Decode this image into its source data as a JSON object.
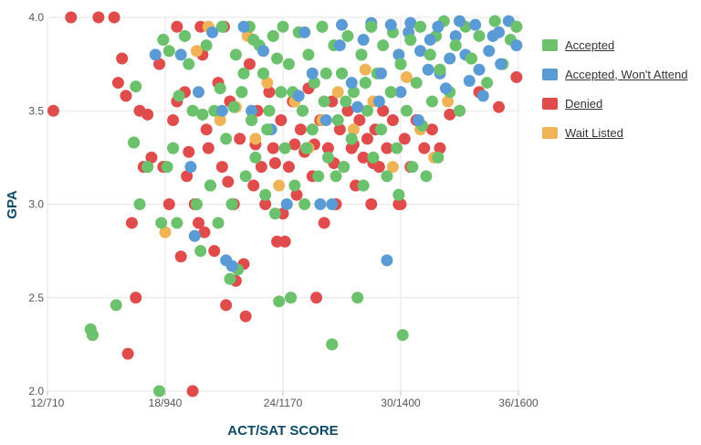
{
  "chart_data": {
    "type": "scatter",
    "xlabel": "ACT/SAT SCORE",
    "ylabel": "GPA",
    "xlim": [
      12,
      36
    ],
    "ylim": [
      2.0,
      4.0
    ],
    "x_ticks": [
      {
        "value": 12,
        "label": "12/710"
      },
      {
        "value": 18,
        "label": "18/940"
      },
      {
        "value": 24,
        "label": "24/1170"
      },
      {
        "value": 30,
        "label": "30/1400"
      },
      {
        "value": 36,
        "label": "36/1600"
      }
    ],
    "y_ticks": [
      {
        "value": 2.0,
        "label": "2.0"
      },
      {
        "value": 2.5,
        "label": "2.5"
      },
      {
        "value": 3.0,
        "label": "3.0"
      },
      {
        "value": 3.5,
        "label": "3.5"
      },
      {
        "value": 4.0,
        "label": "4.0"
      }
    ],
    "grid": true,
    "legend_position": "right",
    "series": [
      {
        "name": "Accepted",
        "color": "#6cc16c",
        "points": [
          [
            14.2,
            2.33
          ],
          [
            14.3,
            2.3
          ],
          [
            15.5,
            2.46
          ],
          [
            16.4,
            3.33
          ],
          [
            16.5,
            3.63
          ],
          [
            16.7,
            3.0
          ],
          [
            17.1,
            3.2
          ],
          [
            17.7,
            2.0
          ],
          [
            17.8,
            2.9
          ],
          [
            17.9,
            3.88
          ],
          [
            18.1,
            3.2
          ],
          [
            18.2,
            3.82
          ],
          [
            18.4,
            3.3
          ],
          [
            18.6,
            2.9
          ],
          [
            18.7,
            3.58
          ],
          [
            19.0,
            3.9
          ],
          [
            19.2,
            3.75
          ],
          [
            19.4,
            3.5
          ],
          [
            19.6,
            3.0
          ],
          [
            19.8,
            2.75
          ],
          [
            20.1,
            3.85
          ],
          [
            20.3,
            3.1
          ],
          [
            20.5,
            3.5
          ],
          [
            20.7,
            2.9
          ],
          [
            20.9,
            3.95
          ],
          [
            21.1,
            3.35
          ],
          [
            21.3,
            2.6
          ],
          [
            21.4,
            3.0
          ],
          [
            21.6,
            3.8
          ],
          [
            21.7,
            2.65
          ],
          [
            21.9,
            3.6
          ],
          [
            22.1,
            3.15
          ],
          [
            22.3,
            3.95
          ],
          [
            22.4,
            3.45
          ],
          [
            22.6,
            3.25
          ],
          [
            22.8,
            3.85
          ],
          [
            23.0,
            3.7
          ],
          [
            23.1,
            3.05
          ],
          [
            23.3,
            3.5
          ],
          [
            23.5,
            3.9
          ],
          [
            23.6,
            2.95
          ],
          [
            23.8,
            2.48
          ],
          [
            23.9,
            3.6
          ],
          [
            24.1,
            3.3
          ],
          [
            24.3,
            3.75
          ],
          [
            24.4,
            2.5
          ],
          [
            24.6,
            3.1
          ],
          [
            24.8,
            3.92
          ],
          [
            25.0,
            3.5
          ],
          [
            25.1,
            3.0
          ],
          [
            25.3,
            3.8
          ],
          [
            25.5,
            3.4
          ],
          [
            25.6,
            3.65
          ],
          [
            25.8,
            3.15
          ],
          [
            26.0,
            3.95
          ],
          [
            26.1,
            3.55
          ],
          [
            26.3,
            3.25
          ],
          [
            26.5,
            2.25
          ],
          [
            26.6,
            3.85
          ],
          [
            26.8,
            3.45
          ],
          [
            27.0,
            3.7
          ],
          [
            27.1,
            3.2
          ],
          [
            27.3,
            3.9
          ],
          [
            27.5,
            3.35
          ],
          [
            27.6,
            3.6
          ],
          [
            27.8,
            2.5
          ],
          [
            28.0,
            3.8
          ],
          [
            28.1,
            3.1
          ],
          [
            28.3,
            3.5
          ],
          [
            28.5,
            3.95
          ],
          [
            28.6,
            3.25
          ],
          [
            28.8,
            3.7
          ],
          [
            29.0,
            3.4
          ],
          [
            29.1,
            3.85
          ],
          [
            29.3,
            3.15
          ],
          [
            29.5,
            3.6
          ],
          [
            29.6,
            3.92
          ],
          [
            29.8,
            3.3
          ],
          [
            30.0,
            3.75
          ],
          [
            30.1,
            2.3
          ],
          [
            30.3,
            3.5
          ],
          [
            30.5,
            3.88
          ],
          [
            30.6,
            3.2
          ],
          [
            30.8,
            3.65
          ],
          [
            31.0,
            3.95
          ],
          [
            31.1,
            3.42
          ],
          [
            31.3,
            3.15
          ],
          [
            31.5,
            3.8
          ],
          [
            31.6,
            3.55
          ],
          [
            31.8,
            3.9
          ],
          [
            32.0,
            3.72
          ],
          [
            32.2,
            3.98
          ],
          [
            32.5,
            3.6
          ],
          [
            32.8,
            3.85
          ],
          [
            33.0,
            3.5
          ],
          [
            33.3,
            3.95
          ],
          [
            33.6,
            3.78
          ],
          [
            34.0,
            3.9
          ],
          [
            34.4,
            3.65
          ],
          [
            34.8,
            3.98
          ],
          [
            35.2,
            3.75
          ],
          [
            35.6,
            3.88
          ],
          [
            35.9,
            3.95
          ],
          [
            22.0,
            3.7
          ],
          [
            22.5,
            3.88
          ],
          [
            23.2,
            3.4
          ],
          [
            24.0,
            3.95
          ],
          [
            24.5,
            3.6
          ],
          [
            25.2,
            3.3
          ],
          [
            26.2,
            3.7
          ],
          [
            27.2,
            3.55
          ],
          [
            28.2,
            3.65
          ],
          [
            21.5,
            3.52
          ],
          [
            20.8,
            3.62
          ],
          [
            19.9,
            3.48
          ],
          [
            23.7,
            3.78
          ],
          [
            26.7,
            3.15
          ],
          [
            29.9,
            3.05
          ],
          [
            31.9,
            3.25
          ]
        ]
      },
      {
        "name": "Accepted, Won't Attend",
        "color": "#5b9bd5",
        "points": [
          [
            17.5,
            3.8
          ],
          [
            18.8,
            3.8
          ],
          [
            19.3,
            3.2
          ],
          [
            19.5,
            2.83
          ],
          [
            19.7,
            3.6
          ],
          [
            20.4,
            3.92
          ],
          [
            20.9,
            3.5
          ],
          [
            21.1,
            2.7
          ],
          [
            21.4,
            2.67
          ],
          [
            22.0,
            3.95
          ],
          [
            22.4,
            3.5
          ],
          [
            23.0,
            3.82
          ],
          [
            23.4,
            3.4
          ],
          [
            24.2,
            3.0
          ],
          [
            25.1,
            3.92
          ],
          [
            25.5,
            3.7
          ],
          [
            25.9,
            3.0
          ],
          [
            26.5,
            3.0
          ],
          [
            26.9,
            3.85
          ],
          [
            27.5,
            3.65
          ],
          [
            28.1,
            3.88
          ],
          [
            28.9,
            3.55
          ],
          [
            29.3,
            2.7
          ],
          [
            29.9,
            3.8
          ],
          [
            30.4,
            3.92
          ],
          [
            30.9,
            3.45
          ],
          [
            31.4,
            3.72
          ],
          [
            31.9,
            3.95
          ],
          [
            32.3,
            3.62
          ],
          [
            32.8,
            3.9
          ],
          [
            33.3,
            3.8
          ],
          [
            33.8,
            3.96
          ],
          [
            34.2,
            3.58
          ],
          [
            34.7,
            3.9
          ],
          [
            35.1,
            3.75
          ],
          [
            35.5,
            3.98
          ],
          [
            35.9,
            3.85
          ],
          [
            27.0,
            3.96
          ],
          [
            28.5,
            3.97
          ],
          [
            29.5,
            3.96
          ],
          [
            30.5,
            3.97
          ],
          [
            31.5,
            3.88
          ],
          [
            32.5,
            3.78
          ],
          [
            33.5,
            3.66
          ],
          [
            34.5,
            3.82
          ],
          [
            24.8,
            3.58
          ],
          [
            26.2,
            3.45
          ],
          [
            27.8,
            3.52
          ],
          [
            29.0,
            3.7
          ],
          [
            30.0,
            3.6
          ],
          [
            31.0,
            3.82
          ],
          [
            32.0,
            3.7
          ],
          [
            33.0,
            3.98
          ],
          [
            34.0,
            3.72
          ],
          [
            35.0,
            3.92
          ]
        ]
      },
      {
        "name": "Denied",
        "color": "#e04b4b",
        "points": [
          [
            12.3,
            3.5
          ],
          [
            13.2,
            4.0
          ],
          [
            14.3,
            2.3
          ],
          [
            14.6,
            4.0
          ],
          [
            15.6,
            3.65
          ],
          [
            15.8,
            3.78
          ],
          [
            16.1,
            2.2
          ],
          [
            16.3,
            2.9
          ],
          [
            16.5,
            2.5
          ],
          [
            16.7,
            3.5
          ],
          [
            16.9,
            3.2
          ],
          [
            17.1,
            3.48
          ],
          [
            17.3,
            3.25
          ],
          [
            17.7,
            3.75
          ],
          [
            18.0,
            3.2
          ],
          [
            18.2,
            3.0
          ],
          [
            18.4,
            3.45
          ],
          [
            18.6,
            3.55
          ],
          [
            18.8,
            2.72
          ],
          [
            19.0,
            3.6
          ],
          [
            19.2,
            3.28
          ],
          [
            19.4,
            2.0
          ],
          [
            19.5,
            3.0
          ],
          [
            19.7,
            2.9
          ],
          [
            19.9,
            3.8
          ],
          [
            20.1,
            3.4
          ],
          [
            20.3,
            3.1
          ],
          [
            20.5,
            2.75
          ],
          [
            20.7,
            3.65
          ],
          [
            20.9,
            3.2
          ],
          [
            21.1,
            2.46
          ],
          [
            21.3,
            3.55
          ],
          [
            21.5,
            3.0
          ],
          [
            21.6,
            2.59
          ],
          [
            21.8,
            3.35
          ],
          [
            22.0,
            2.68
          ],
          [
            22.1,
            2.4
          ],
          [
            22.3,
            3.75
          ],
          [
            22.5,
            3.1
          ],
          [
            22.7,
            3.5
          ],
          [
            22.9,
            3.2
          ],
          [
            23.1,
            3.0
          ],
          [
            23.3,
            3.6
          ],
          [
            23.5,
            3.3
          ],
          [
            23.7,
            2.8
          ],
          [
            23.9,
            3.45
          ],
          [
            24.1,
            2.8
          ],
          [
            24.3,
            3.2
          ],
          [
            24.5,
            3.55
          ],
          [
            24.7,
            3.05
          ],
          [
            24.9,
            3.4
          ],
          [
            25.1,
            3.28
          ],
          [
            25.3,
            3.62
          ],
          [
            25.5,
            3.15
          ],
          [
            25.7,
            2.5
          ],
          [
            25.9,
            3.45
          ],
          [
            26.1,
            2.9
          ],
          [
            26.3,
            3.3
          ],
          [
            26.5,
            3.55
          ],
          [
            26.7,
            3.0
          ],
          [
            26.9,
            3.4
          ],
          [
            27.1,
            3.2
          ],
          [
            27.3,
            3.5
          ],
          [
            27.5,
            3.3
          ],
          [
            27.7,
            3.1
          ],
          [
            27.9,
            3.45
          ],
          [
            28.1,
            3.25
          ],
          [
            28.3,
            3.35
          ],
          [
            28.5,
            3.0
          ],
          [
            28.7,
            3.4
          ],
          [
            28.9,
            3.2
          ],
          [
            29.1,
            3.5
          ],
          [
            29.3,
            3.3
          ],
          [
            29.6,
            3.45
          ],
          [
            29.9,
            3.0
          ],
          [
            30.2,
            3.35
          ],
          [
            30.5,
            3.2
          ],
          [
            30.8,
            3.45
          ],
          [
            31.2,
            3.3
          ],
          [
            31.6,
            3.4
          ],
          [
            32.0,
            3.3
          ],
          [
            32.5,
            3.48
          ],
          [
            33.0,
            3.5
          ],
          [
            34.0,
            3.6
          ],
          [
            35.0,
            3.52
          ],
          [
            35.9,
            3.68
          ],
          [
            15.4,
            4.0
          ],
          [
            16.0,
            3.58
          ],
          [
            18.6,
            3.95
          ],
          [
            19.8,
            3.95
          ],
          [
            21.0,
            3.95
          ],
          [
            20.2,
            3.3
          ],
          [
            21.2,
            3.12
          ],
          [
            22.6,
            3.32
          ],
          [
            23.6,
            3.22
          ],
          [
            24.6,
            3.32
          ],
          [
            25.6,
            3.32
          ],
          [
            26.6,
            3.22
          ],
          [
            27.6,
            3.32
          ],
          [
            28.6,
            3.22
          ],
          [
            17.9,
            3.2
          ],
          [
            19.1,
            3.15
          ],
          [
            20.0,
            2.85
          ],
          [
            24.0,
            2.95
          ],
          [
            30.0,
            3.0
          ]
        ]
      },
      {
        "name": "Wait Listed",
        "color": "#f0b355",
        "points": [
          [
            18.0,
            2.85
          ],
          [
            19.6,
            3.82
          ],
          [
            20.2,
            3.95
          ],
          [
            20.8,
            3.45
          ],
          [
            21.6,
            3.52
          ],
          [
            22.2,
            3.9
          ],
          [
            22.6,
            3.35
          ],
          [
            23.2,
            3.65
          ],
          [
            23.8,
            3.1
          ],
          [
            24.6,
            3.55
          ],
          [
            25.3,
            3.3
          ],
          [
            26.0,
            3.45
          ],
          [
            26.8,
            3.6
          ],
          [
            27.6,
            3.4
          ],
          [
            28.6,
            3.55
          ],
          [
            29.6,
            3.2
          ],
          [
            30.3,
            3.68
          ],
          [
            31.0,
            3.4
          ],
          [
            31.7,
            3.25
          ],
          [
            32.4,
            3.55
          ],
          [
            28.2,
            3.72
          ]
        ]
      }
    ]
  },
  "legend": {
    "items": [
      {
        "label": "Accepted",
        "color": "#6cc16c"
      },
      {
        "label": "Accepted, Won't Attend",
        "color": "#5b9bd5"
      },
      {
        "label": "Denied",
        "color": "#e04b4b"
      },
      {
        "label": "Wait Listed",
        "color": "#f0b355"
      }
    ]
  }
}
